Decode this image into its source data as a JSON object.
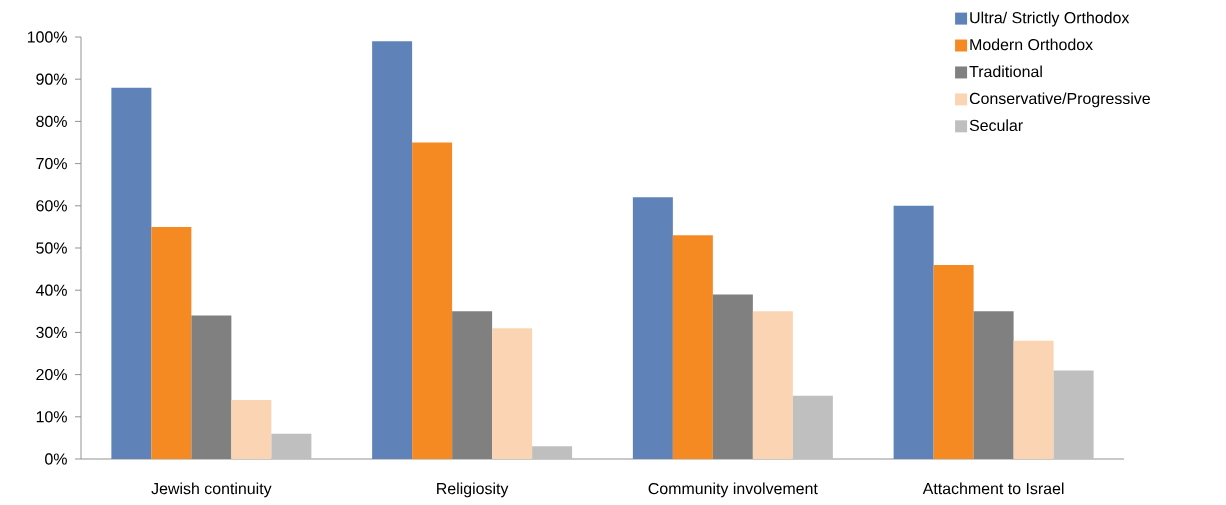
{
  "chart_data": {
    "type": "bar",
    "categories": [
      "Jewish continuity",
      "Religiosity",
      "Community involvement",
      "Attachment to Israel"
    ],
    "series": [
      {
        "name": "Ultra/ Strictly Orthodox",
        "color": "#5f83b9",
        "values": [
          88,
          99,
          62,
          60
        ]
      },
      {
        "name": "Modern Orthodox",
        "color": "#f58a22",
        "values": [
          55,
          75,
          53,
          46
        ]
      },
      {
        "name": "Traditional",
        "color": "#808080",
        "values": [
          34,
          35,
          39,
          35
        ]
      },
      {
        "name": "Conservative/Progressive",
        "color": "#fbd4b4",
        "values": [
          14,
          31,
          35,
          28
        ]
      },
      {
        "name": "Secular",
        "color": "#bfbfbf",
        "values": [
          6,
          3,
          15,
          21
        ]
      }
    ],
    "ylim": [
      0,
      100
    ],
    "yticks": [
      {
        "value": 0,
        "label": "0%"
      },
      {
        "value": 10,
        "label": "10%"
      },
      {
        "value": 20,
        "label": "20%"
      },
      {
        "value": 30,
        "label": "30%"
      },
      {
        "value": 40,
        "label": "40%"
      },
      {
        "value": 50,
        "label": "50%"
      },
      {
        "value": 60,
        "label": "60%"
      },
      {
        "value": 70,
        "label": "70%"
      },
      {
        "value": 80,
        "label": "80%"
      },
      {
        "value": 90,
        "label": "90%"
      },
      {
        "value": 100,
        "label": "100%"
      }
    ],
    "grid": false,
    "legend": "top right"
  }
}
